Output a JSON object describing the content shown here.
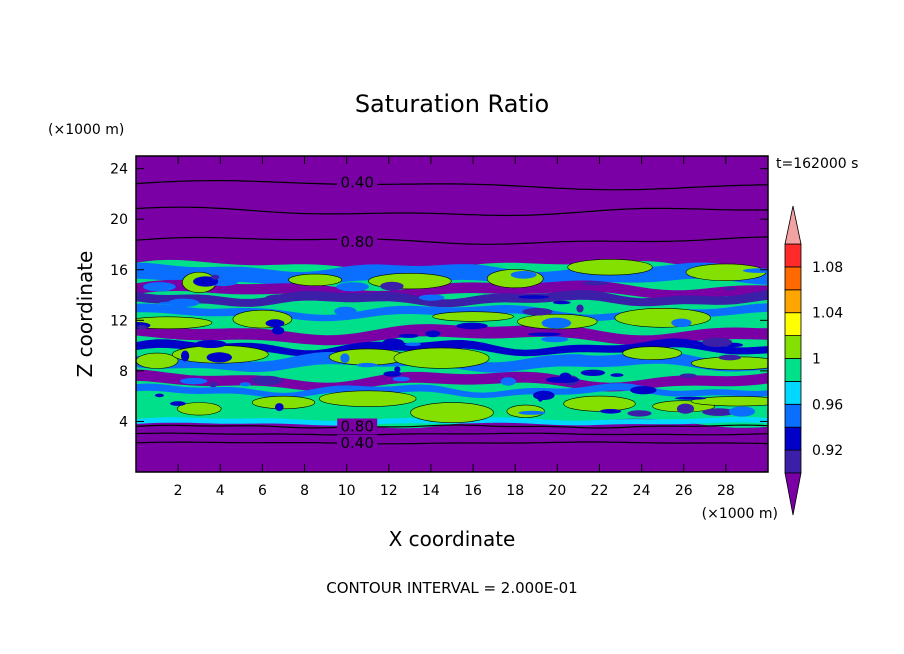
{
  "chart_data": {
    "type": "heatmap",
    "title": "Saturation Ratio",
    "xlabel": "X coordinate",
    "ylabel": "Z coordinate",
    "x_unit": "(×1000 m)",
    "y_unit": "(×1000 m)",
    "time_label": "t=162000 s",
    "footer": "CONTOUR INTERVAL = 2.000E-01",
    "xlim": [
      0,
      30
    ],
    "ylim": [
      0,
      25
    ],
    "x_ticks": [
      "2",
      "4",
      "6",
      "8",
      "10",
      "12",
      "14",
      "16",
      "18",
      "20",
      "22",
      "24",
      "26",
      "28"
    ],
    "y_ticks": [
      "4",
      "8",
      "12",
      "16",
      "20",
      "24"
    ],
    "contour_labels": [
      {
        "text": "0.40",
        "x": 10.5,
        "y": 22.9
      },
      {
        "text": "0.80",
        "x": 10.5,
        "y": 18.2
      },
      {
        "text": "0.80",
        "x": 10.5,
        "y": 3.6
      },
      {
        "text": "0.40",
        "x": 10.5,
        "y": 2.3
      }
    ],
    "colorbar": {
      "levels": [
        0.92,
        0.94,
        0.96,
        0.98,
        1.0,
        1.02,
        1.04,
        1.06,
        1.08,
        1.1
      ],
      "tick_labels": [
        "0.92",
        "0.96",
        "1",
        "1.04",
        "1.08"
      ],
      "colors": [
        "#7a00a6",
        "#3b1fa8",
        "#0000c8",
        "#0a6eff",
        "#00d8ff",
        "#00e08a",
        "#84e000",
        "#ffff00",
        "#ffa500",
        "#ff6a00",
        "#ff2a2a",
        "#f2a2a2"
      ]
    },
    "palette": {
      "dry": "#7a00a6",
      "indigo": "#3b1fa8",
      "blue": "#0000c8",
      "light_blue": "#0a6eff",
      "cyan": "#00d8ff",
      "green": "#00e08a",
      "lime": "#84e000"
    }
  }
}
